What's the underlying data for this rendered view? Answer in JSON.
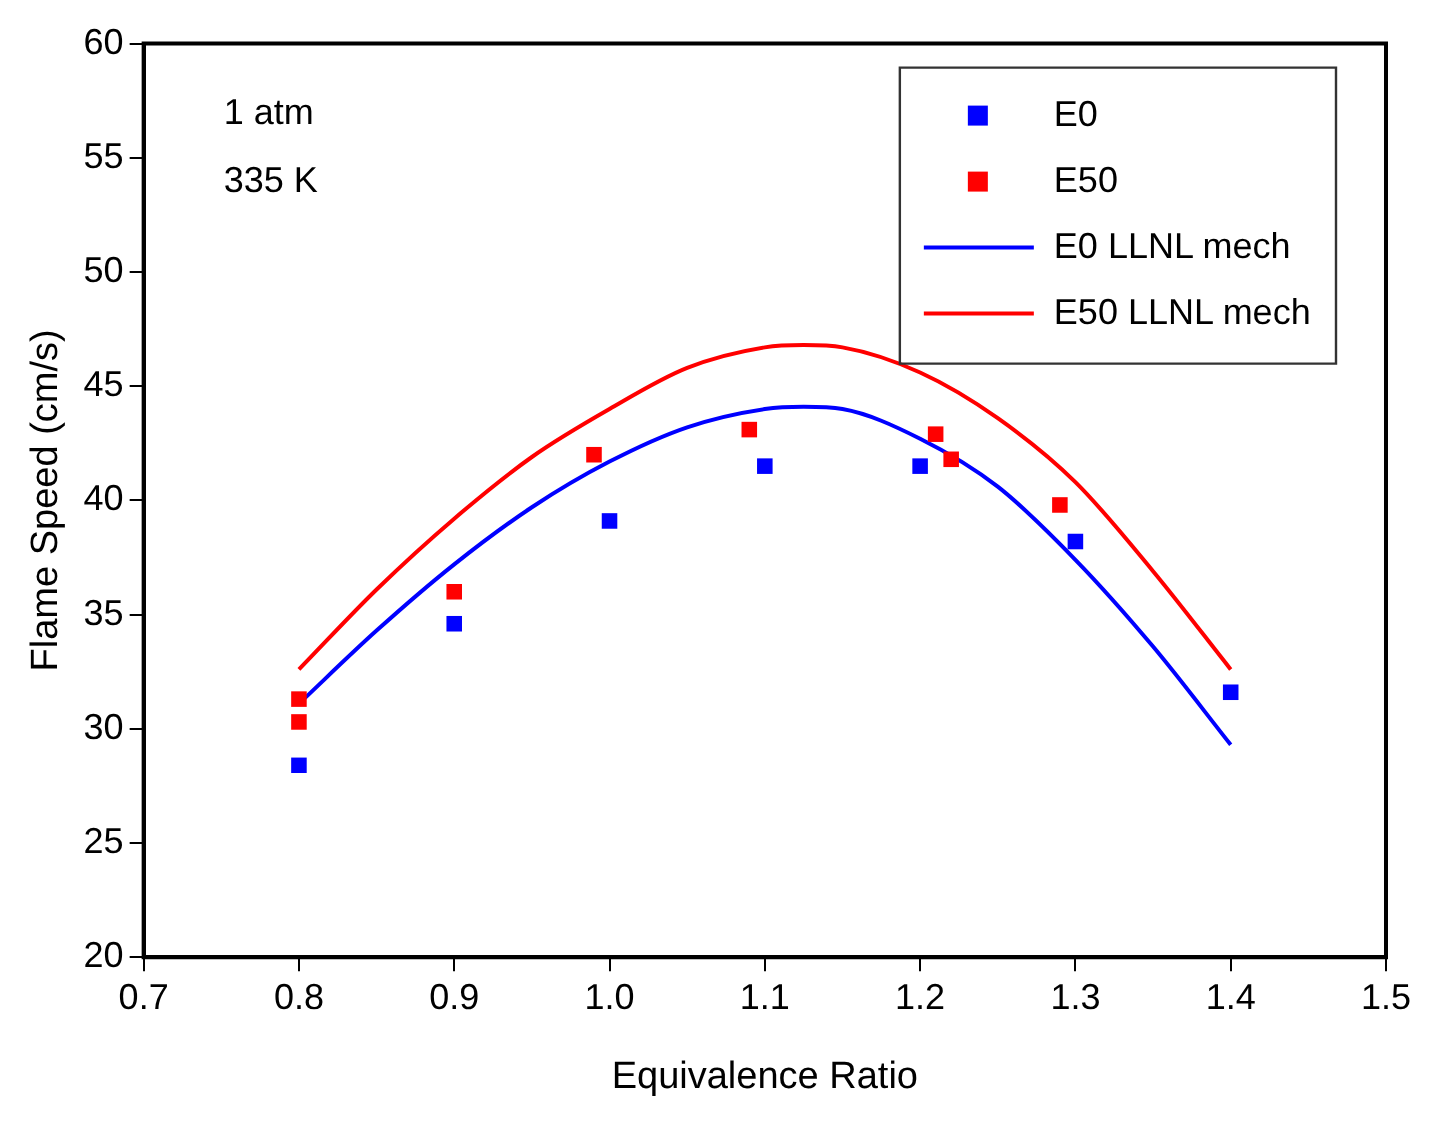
{
  "chart_data": {
    "type": "scatter",
    "xlabel": "Equivalence Ratio",
    "ylabel": "Flame Speed (cm/s)",
    "xlim": [
      0.7,
      1.5
    ],
    "xticks": [
      {
        "value": 0.7,
        "label": "0.7"
      },
      {
        "value": 0.8,
        "label": "0.8"
      },
      {
        "value": 0.9,
        "label": "0.9"
      },
      {
        "value": 1.0,
        "label": "1.0"
      },
      {
        "value": 1.1,
        "label": "1.1"
      },
      {
        "value": 1.2,
        "label": "1.2"
      },
      {
        "value": 1.3,
        "label": "1.3"
      },
      {
        "value": 1.4,
        "label": "1.4"
      },
      {
        "value": 1.5,
        "label": "1.5"
      }
    ],
    "ylim": [
      20,
      60
    ],
    "yticks": [
      20,
      25,
      30,
      35,
      40,
      45,
      50,
      55,
      60
    ],
    "grid": false,
    "legend": "top right",
    "annotations": [
      "1 atm",
      "335 K"
    ],
    "series": [
      {
        "name": "E0",
        "marker": "square",
        "color": "#0000ff",
        "x": [
          0.8,
          0.9,
          1.0,
          1.1,
          1.2,
          1.3,
          1.4
        ],
        "values": [
          28.4,
          34.6,
          39.1,
          41.5,
          41.5,
          38.2,
          31.6
        ]
      },
      {
        "name": "E50",
        "marker": "square",
        "color": "#ff0000",
        "x": [
          0.8,
          0.8,
          0.9,
          0.99,
          1.09,
          1.21,
          1.22,
          1.29
        ],
        "values": [
          31.3,
          30.3,
          36.0,
          42.0,
          43.1,
          42.9,
          41.8,
          39.8
        ]
      },
      {
        "name": "E0 LLNL mech",
        "type": "line",
        "color": "#0000ff",
        "x": [
          0.8,
          0.85,
          0.9,
          0.95,
          1.0,
          1.05,
          1.1,
          1.125,
          1.15,
          1.2,
          1.25,
          1.3,
          1.35,
          1.4
        ],
        "values": [
          31.1,
          34.3,
          37.2,
          39.7,
          41.7,
          43.2,
          44.0,
          44.1,
          44.0,
          42.7,
          40.6,
          37.4,
          33.6,
          29.3
        ]
      },
      {
        "name": "E50 LLNL mech",
        "type": "line",
        "color": "#ff0000",
        "x": [
          0.8,
          0.85,
          0.9,
          0.95,
          1.0,
          1.05,
          1.1,
          1.125,
          1.15,
          1.2,
          1.25,
          1.3,
          1.35,
          1.4
        ],
        "values": [
          32.6,
          36.1,
          39.2,
          41.9,
          44.0,
          45.8,
          46.7,
          46.8,
          46.7,
          45.6,
          43.6,
          40.8,
          36.9,
          32.6
        ]
      }
    ]
  }
}
